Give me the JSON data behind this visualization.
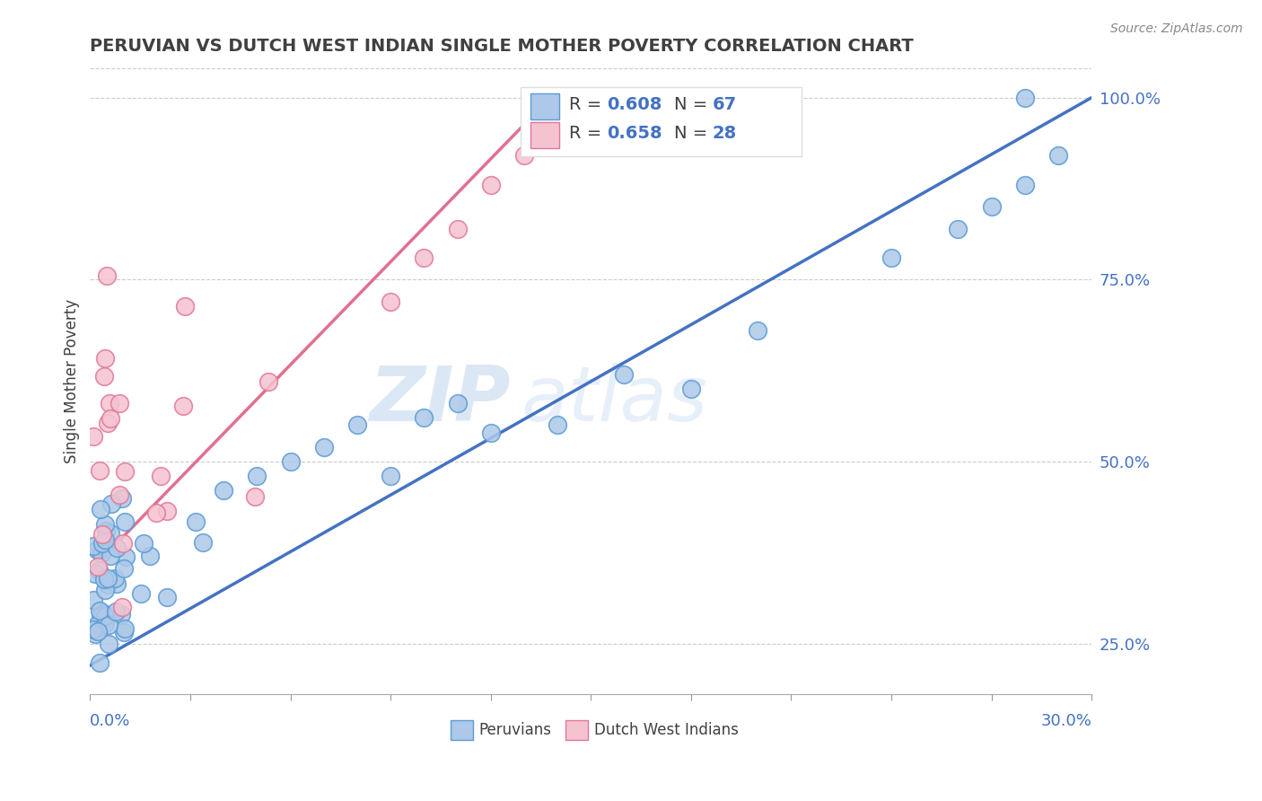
{
  "title": "PERUVIAN VS DUTCH WEST INDIAN SINGLE MOTHER POVERTY CORRELATION CHART",
  "source_text": "Source: ZipAtlas.com",
  "ylabel": "Single Mother Poverty",
  "watermark_zip": "ZIP",
  "watermark_atlas": "atlas",
  "blue_R": 0.608,
  "blue_N": 67,
  "pink_R": 0.658,
  "pink_N": 28,
  "blue_color": "#adc8e8",
  "blue_edge": "#5b9bd5",
  "pink_color": "#f5c2d0",
  "pink_edge": "#e07898",
  "blue_line_color": "#4472c4",
  "pink_line_color": "#e07090",
  "title_color": "#404040",
  "axis_label_color": "#4472c4",
  "legend_R_color": "#4472c4",
  "grid_color": "#cccccc",
  "xmin": 0.0,
  "xmax": 0.3,
  "ymin": 0.18,
  "ymax": 1.04,
  "ytick_vals": [
    0.25,
    0.5,
    0.75,
    1.0
  ],
  "ytick_labels": [
    "25.0%",
    "50.0%",
    "75.0%",
    "100.0%"
  ],
  "blue_line_x0": 0.0,
  "blue_line_y0": 0.22,
  "blue_line_x1": 0.3,
  "blue_line_y1": 1.0,
  "pink_line_x0": 0.0,
  "pink_line_y0": 0.35,
  "pink_line_x1": 0.14,
  "pink_line_y1": 1.01
}
